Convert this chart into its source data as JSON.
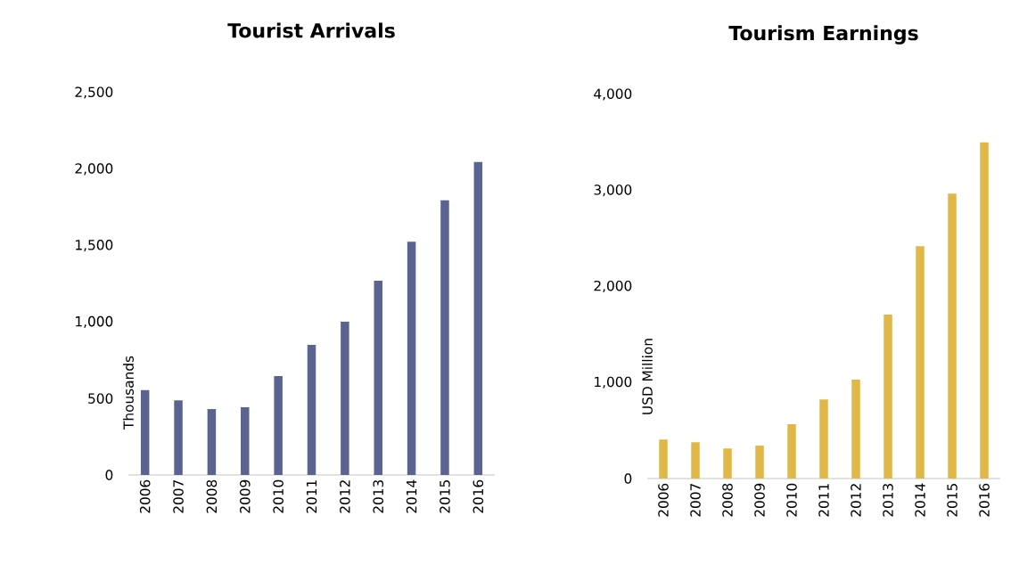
{
  "chart_data": [
    {
      "type": "bar",
      "title": "Tourist Arrivals",
      "ylabel": "Thousands",
      "categories": [
        "2006",
        "2007",
        "2008",
        "2009",
        "2010",
        "2011",
        "2012",
        "2013",
        "2014",
        "2015",
        "2016"
      ],
      "values": [
        555,
        488,
        431,
        443,
        647,
        851,
        1002,
        1270,
        1525,
        1797,
        2047
      ],
      "color": "#5b6390",
      "ylim": [
        0,
        2500
      ],
      "yticks": [
        0,
        500,
        {
          "value": 1000,
          "label": "1,000"
        },
        {
          "value": 1500,
          "label": "1,500"
        },
        {
          "value": 2000,
          "label": "2,000"
        },
        {
          "value": 2500,
          "label": "2,500"
        }
      ]
    },
    {
      "type": "bar",
      "title": "Tourism Earnings",
      "ylabel": "USD Million",
      "categories": [
        "2006",
        "2007",
        "2008",
        "2009",
        "2010",
        "2011",
        "2012",
        "2013",
        "2014",
        "2015",
        "2016"
      ],
      "values": [
        406,
        378,
        313,
        343,
        566,
        823,
        1030,
        1708,
        2420,
        2967,
        3502
      ],
      "color": "#e1b847",
      "ylim": [
        0,
        4000
      ],
      "yticks": [
        0,
        {
          "value": 1000,
          "label": "1,000"
        },
        {
          "value": 2000,
          "label": "2,000"
        },
        {
          "value": 3000,
          "label": "3,000"
        },
        {
          "value": 4000,
          "label": "4,000"
        }
      ]
    }
  ]
}
